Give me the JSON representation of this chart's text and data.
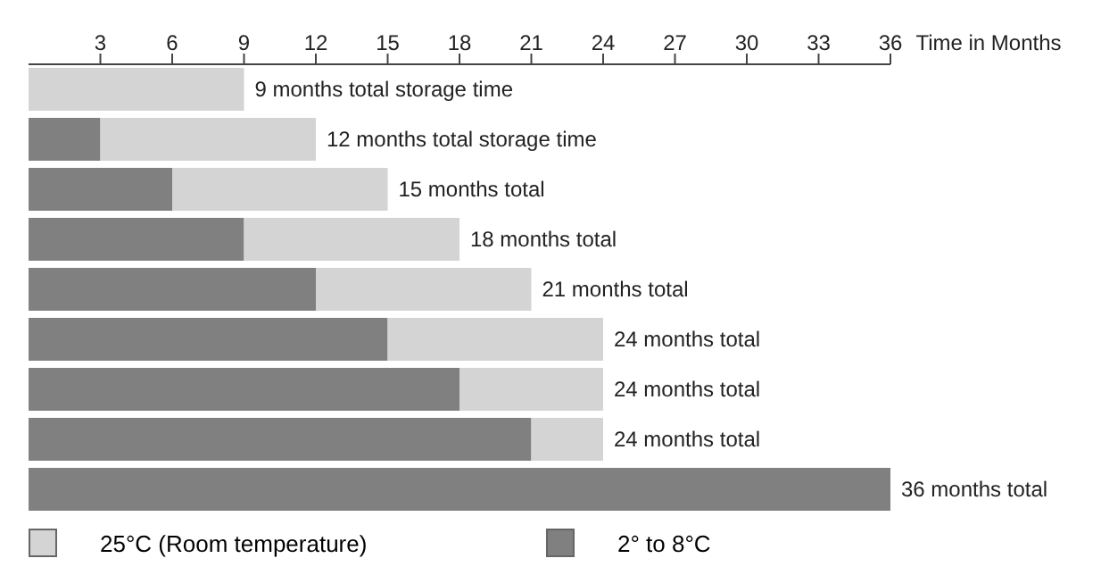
{
  "chart_data": {
    "type": "bar",
    "orientation": "horizontal",
    "stacked": true,
    "xlabel": "Time in Months",
    "categories": [
      null,
      null,
      null,
      null,
      null,
      null,
      null,
      null,
      null
    ],
    "series": [
      {
        "name": "2° to 8°C",
        "color": "#808080",
        "values": [
          0,
          3,
          6,
          9,
          12,
          15,
          18,
          21,
          36
        ]
      },
      {
        "name": "25°C (Room temperature)",
        "color": "#d4d4d4",
        "values": [
          9,
          9,
          9,
          9,
          9,
          9,
          6,
          3,
          0
        ]
      }
    ],
    "xlim": [
      0,
      36
    ],
    "xticks": [
      3,
      6,
      9,
      12,
      15,
      18,
      21,
      24,
      27,
      30,
      33,
      36
    ],
    "tick_labels": "x",
    "legend": "bottom",
    "annotations": [
      "9 months total storage time",
      "12 months total storage time",
      "15 months total",
      "18 months total",
      "21 months total",
      "24 months total",
      "24 months total",
      "24 months total",
      "36 months total"
    ]
  }
}
